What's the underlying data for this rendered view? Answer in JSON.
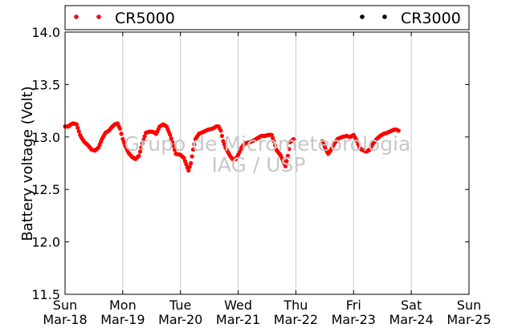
{
  "chart_data": {
    "type": "scatter",
    "ylabel": "Battery voltage (Volt)",
    "ylim": [
      11.5,
      14.0
    ],
    "yticks": [
      "11.5",
      "12.0",
      "12.5",
      "13.0",
      "13.5",
      "14.0"
    ],
    "xlim": [
      0,
      7
    ],
    "xticks": [
      {
        "day": "Sun",
        "date": "Mar-18"
      },
      {
        "day": "Mon",
        "date": "Mar-19"
      },
      {
        "day": "Tue",
        "date": "Mar-20"
      },
      {
        "day": "Wed",
        "date": "Mar-21"
      },
      {
        "day": "Thu",
        "date": "Mar-22"
      },
      {
        "day": "Fri",
        "date": "Mar-23"
      },
      {
        "day": "Sat",
        "date": "Mar-24"
      },
      {
        "day": "Sun",
        "date": "Mar-25"
      }
    ],
    "grid": "vertical",
    "legend_placement": "top",
    "watermark": [
      "Grupo de Micrometeorologia",
      "IAG / USP"
    ],
    "series": [
      {
        "name": "CR5000",
        "color": "#ff0000",
        "points": [
          [
            0.0,
            13.1
          ],
          [
            0.06,
            13.1
          ],
          [
            0.1,
            13.12
          ],
          [
            0.14,
            13.13
          ],
          [
            0.2,
            13.12
          ],
          [
            0.26,
            13.02
          ],
          [
            0.3,
            12.98
          ],
          [
            0.34,
            12.95
          ],
          [
            0.4,
            12.92
          ],
          [
            0.46,
            12.88
          ],
          [
            0.52,
            12.87
          ],
          [
            0.58,
            12.9
          ],
          [
            0.64,
            12.98
          ],
          [
            0.7,
            13.04
          ],
          [
            0.76,
            13.06
          ],
          [
            0.82,
            13.1
          ],
          [
            0.86,
            13.12
          ],
          [
            0.91,
            13.13
          ],
          [
            0.95,
            13.08
          ],
          [
            1.0,
            12.98
          ],
          [
            1.04,
            12.92
          ],
          [
            1.1,
            12.85
          ],
          [
            1.16,
            12.81
          ],
          [
            1.22,
            12.79
          ],
          [
            1.28,
            12.82
          ],
          [
            1.34,
            12.94
          ],
          [
            1.4,
            13.04
          ],
          [
            1.46,
            13.05
          ],
          [
            1.52,
            13.05
          ],
          [
            1.58,
            13.03
          ],
          [
            1.64,
            13.1
          ],
          [
            1.7,
            13.12
          ],
          [
            1.76,
            13.1
          ],
          [
            1.82,
            13.02
          ],
          [
            1.86,
            12.95
          ],
          [
            1.92,
            12.84
          ],
          [
            2.0,
            12.83
          ],
          [
            2.06,
            12.8
          ],
          [
            2.1,
            12.74
          ],
          [
            2.14,
            12.68
          ],
          [
            2.18,
            12.75
          ],
          [
            2.22,
            12.88
          ],
          [
            2.26,
            12.98
          ],
          [
            2.32,
            13.03
          ],
          [
            2.4,
            13.05
          ],
          [
            2.48,
            13.07
          ],
          [
            2.56,
            13.08
          ],
          [
            2.62,
            13.1
          ],
          [
            2.66,
            13.1
          ],
          [
            2.7,
            13.06
          ],
          [
            2.74,
            12.96
          ],
          [
            2.78,
            12.9
          ],
          [
            2.82,
            12.86
          ],
          [
            2.86,
            12.82
          ],
          [
            2.9,
            12.79
          ],
          [
            2.96,
            12.79
          ],
          [
            3.0,
            12.83
          ],
          [
            3.06,
            12.9
          ],
          [
            3.12,
            12.94
          ],
          [
            3.2,
            12.95
          ],
          [
            3.28,
            12.97
          ],
          [
            3.34,
            12.99
          ],
          [
            3.4,
            13.01
          ],
          [
            3.46,
            13.01
          ],
          [
            3.52,
            13.02
          ],
          [
            3.58,
            13.02
          ],
          [
            3.62,
            12.96
          ],
          [
            3.66,
            12.88
          ],
          [
            3.7,
            12.85
          ],
          [
            3.74,
            12.82
          ],
          [
            3.78,
            12.77
          ],
          [
            3.82,
            12.72
          ],
          [
            3.86,
            12.82
          ],
          [
            3.9,
            12.95
          ],
          [
            3.96,
            12.98
          ],
          [
            4.46,
            12.96
          ],
          [
            4.52,
            12.88
          ],
          [
            4.56,
            12.84
          ],
          [
            4.6,
            12.87
          ],
          [
            4.66,
            12.93
          ],
          [
            4.72,
            12.98
          ],
          [
            4.8,
            13.0
          ],
          [
            4.88,
            13.01
          ],
          [
            4.94,
            13.0
          ],
          [
            5.0,
            13.02
          ],
          [
            5.06,
            12.96
          ],
          [
            5.1,
            12.9
          ],
          [
            5.14,
            12.88
          ],
          [
            5.18,
            12.87
          ],
          [
            5.22,
            12.86
          ],
          [
            5.28,
            12.88
          ],
          [
            5.34,
            12.94
          ],
          [
            5.4,
            12.98
          ],
          [
            5.46,
            13.01
          ],
          [
            5.52,
            13.03
          ],
          [
            5.58,
            13.04
          ],
          [
            5.62,
            13.05
          ],
          [
            5.66,
            13.06
          ],
          [
            5.7,
            13.07
          ],
          [
            5.74,
            13.07
          ],
          [
            5.78,
            13.06
          ]
        ]
      },
      {
        "name": "CR3000",
        "color": "#000000",
        "points": []
      }
    ]
  }
}
